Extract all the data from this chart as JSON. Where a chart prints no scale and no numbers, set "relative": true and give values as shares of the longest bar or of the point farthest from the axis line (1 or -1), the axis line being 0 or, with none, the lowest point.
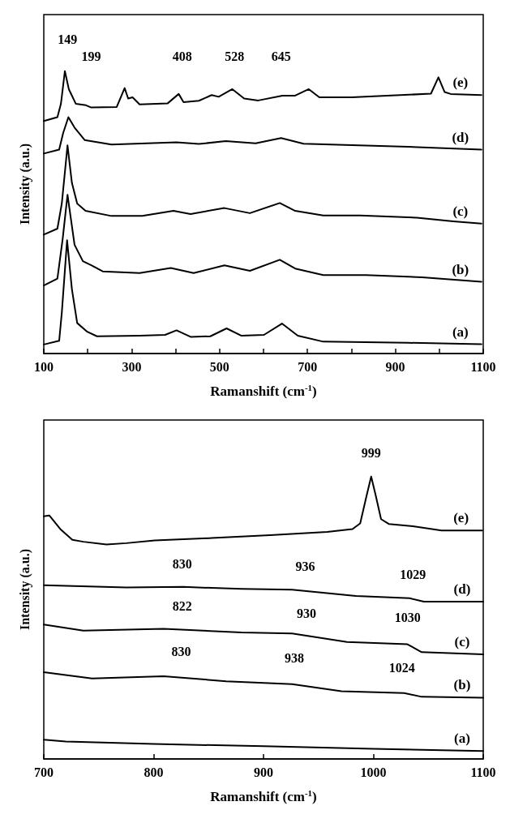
{
  "chart_data": [
    {
      "type": "line",
      "relative": true,
      "xlabel": "Ramanshift (cm$^{-1}$)",
      "ylabel": "Intensity (a.u.)",
      "xlim": [
        100,
        1100
      ],
      "xticks": [
        100,
        {
          "value": 200,
          "label": null
        },
        300,
        {
          "value": 400,
          "label": null
        },
        500,
        {
          "value": 600,
          "label": null
        },
        700,
        {
          "value": 800,
          "label": null
        },
        900,
        {
          "value": 1000,
          "label": null
        },
        1100
      ],
      "tick_labels": "x",
      "grid": false,
      "legend": false,
      "marker": "none",
      "line_style": "solid",
      "series": [
        {
          "name": "(e)",
          "color": "#000000",
          "x": [
            100,
            131,
            139,
            148,
            157,
            173,
            196,
            208,
            266,
            284,
            292,
            302,
            318,
            382,
            407,
            418,
            453,
            482,
            498,
            529,
            556,
            588,
            643,
            672,
            703,
            727,
            801,
            981,
            998,
            1012,
            1026,
            1096
          ],
          "values": [
            0.823,
            0.837,
            0.884,
            1.0,
            0.936,
            0.884,
            0.879,
            0.871,
            0.873,
            0.94,
            0.903,
            0.907,
            0.882,
            0.886,
            0.919,
            0.89,
            0.895,
            0.915,
            0.909,
            0.936,
            0.903,
            0.896,
            0.913,
            0.913,
            0.936,
            0.907,
            0.907,
            0.92,
            0.978,
            0.926,
            0.919,
            0.915
          ]
        },
        {
          "name": "(d)",
          "color": "#000000",
          "x": [
            100,
            135,
            144,
            156,
            170,
            193,
            254,
            402,
            453,
            514,
            582,
            640,
            691,
            801,
            929,
            1096
          ],
          "values": [
            0.708,
            0.722,
            0.78,
            0.837,
            0.8,
            0.756,
            0.74,
            0.748,
            0.742,
            0.752,
            0.744,
            0.763,
            0.743,
            0.738,
            0.732,
            0.722
          ]
        },
        {
          "name": "(c)",
          "color": "#000000",
          "x": [
            100,
            131,
            141,
            154,
            164,
            176,
            195,
            254,
            324,
            395,
            434,
            511,
            569,
            637,
            672,
            736,
            820,
            949,
            1032,
            1096
          ],
          "values": [
            0.421,
            0.442,
            0.531,
            0.737,
            0.604,
            0.531,
            0.505,
            0.487,
            0.487,
            0.505,
            0.494,
            0.515,
            0.497,
            0.533,
            0.505,
            0.489,
            0.489,
            0.481,
            0.468,
            0.46
          ]
        },
        {
          "name": "(b)",
          "color": "#000000",
          "x": [
            100,
            131,
            143,
            154,
            170,
            189,
            209,
            234,
            318,
            389,
            441,
            511,
            569,
            637,
            672,
            736,
            833,
            961,
            1096
          ],
          "values": [
            0.241,
            0.265,
            0.406,
            0.562,
            0.385,
            0.327,
            0.312,
            0.291,
            0.285,
            0.303,
            0.285,
            0.312,
            0.293,
            0.332,
            0.301,
            0.278,
            0.278,
            0.27,
            0.254
          ]
        },
        {
          "name": "(a)",
          "color": "#000000",
          "x": [
            100,
            135,
            141,
            153,
            164,
            176,
            199,
            221,
            318,
            376,
            402,
            434,
            479,
            516,
            550,
            601,
            642,
            678,
            736,
            929,
            1096
          ],
          "values": [
            0.032,
            0.045,
            0.144,
            0.401,
            0.228,
            0.108,
            0.077,
            0.061,
            0.063,
            0.066,
            0.082,
            0.059,
            0.061,
            0.089,
            0.063,
            0.066,
            0.106,
            0.063,
            0.042,
            0.038,
            0.033
          ]
        }
      ],
      "annotations": [
        "149",
        "199",
        "408",
        "528",
        "645"
      ]
    },
    {
      "type": "line",
      "relative": true,
      "xlabel": "Ramanshift (cm$^{-1}$)",
      "ylabel": "Intensity (a.u.)",
      "xlim": [
        700,
        1100
      ],
      "xticks": [
        700,
        800,
        900,
        1000,
        1100
      ],
      "tick_labels": "x",
      "grid": false,
      "legend": false,
      "marker": "none",
      "line_style": "solid",
      "series": [
        {
          "name": "(e)",
          "color": "#000000",
          "x": [
            700,
            705,
            715,
            726,
            736,
            757,
            775,
            801,
            853,
            906,
            958,
            981,
            988,
            994,
            998,
            1002,
            1007,
            1014,
            1036,
            1062,
            1099
          ],
          "values": [
            0.859,
            0.862,
            0.814,
            0.776,
            0.769,
            0.759,
            0.764,
            0.774,
            0.782,
            0.792,
            0.804,
            0.814,
            0.834,
            0.935,
            1.0,
            0.935,
            0.849,
            0.832,
            0.824,
            0.809,
            0.809
          ]
        },
        {
          "name": "(d)",
          "color": "#000000",
          "x": [
            700,
            775,
            827,
            880,
            926,
            984,
            1033,
            1046,
            1100
          ],
          "values": [
            0.615,
            0.607,
            0.609,
            0.602,
            0.599,
            0.577,
            0.569,
            0.557,
            0.557
          ]
        },
        {
          "name": "(c)",
          "color": "#000000",
          "x": [
            700,
            736,
            809,
            880,
            926,
            976,
            1031,
            1044,
            1100
          ],
          "values": [
            0.476,
            0.454,
            0.461,
            0.448,
            0.444,
            0.414,
            0.406,
            0.378,
            0.37
          ]
        },
        {
          "name": "(b)",
          "color": "#000000",
          "x": [
            700,
            744,
            809,
            866,
            926,
            971,
            1028,
            1044,
            1100
          ],
          "values": [
            0.307,
            0.285,
            0.293,
            0.275,
            0.265,
            0.24,
            0.233,
            0.22,
            0.217
          ]
        },
        {
          "name": "(a)",
          "color": "#000000",
          "x": [
            700,
            720,
            800,
            900,
            1000,
            1100
          ],
          "values": [
            0.068,
            0.062,
            0.053,
            0.045,
            0.036,
            0.028
          ]
        }
      ],
      "annotations": [
        "999",
        "830",
        "936",
        "1029",
        "822",
        "930",
        "1030",
        "830",
        "938",
        "1024"
      ]
    }
  ]
}
